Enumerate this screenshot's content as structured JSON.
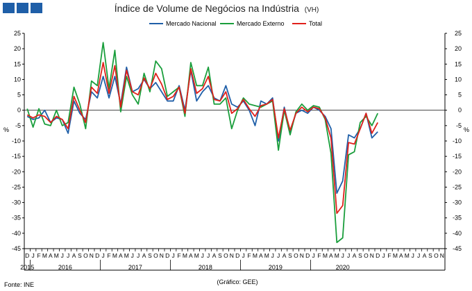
{
  "chart_data": {
    "type": "line",
    "title": "Índice de Volume de Negócios na Indústria",
    "title_suffix": "(VH)",
    "ylabel": "%",
    "ylim": [
      -45,
      25
    ],
    "yticks": [
      25,
      20,
      15,
      10,
      5,
      0,
      -5,
      -10,
      -15,
      -20,
      -25,
      -30,
      -35,
      -40,
      -45
    ],
    "grid": false,
    "legend_position": "top",
    "month_letters": [
      "D",
      "J",
      "F",
      "M",
      "A",
      "M",
      "J",
      "J",
      "A",
      "S",
      "O",
      "N",
      "D",
      "J",
      "F",
      "M",
      "A",
      "M",
      "J",
      "J",
      "A",
      "S",
      "O",
      "N",
      "D",
      "J",
      "F",
      "M",
      "A",
      "M",
      "J",
      "J",
      "A",
      "S",
      "O",
      "N",
      "D",
      "J",
      "F",
      "M",
      "A",
      "M",
      "J",
      "J",
      "A",
      "S",
      "O",
      "N",
      "D",
      "J",
      "F",
      "M",
      "A",
      "M",
      "J",
      "J",
      "A",
      "S",
      "O",
      "N",
      "D",
      "J",
      "F",
      "M",
      "A",
      "M",
      "J",
      "J",
      "A",
      "S",
      "O",
      "N"
    ],
    "years": [
      {
        "label": "2015",
        "start": 0,
        "end": 0
      },
      {
        "label": "2016",
        "start": 1,
        "end": 12
      },
      {
        "label": "2017",
        "start": 13,
        "end": 24
      },
      {
        "label": "2018",
        "start": 25,
        "end": 36
      },
      {
        "label": "2019",
        "start": 37,
        "end": 48
      },
      {
        "label": "2020",
        "start": 49,
        "end": 59
      }
    ],
    "series": [
      {
        "name": "Mercado Nacional",
        "color": "#1f5fa8",
        "values": [
          -2,
          -3,
          -2.5,
          0,
          -4,
          -2.5,
          -3,
          -7.5,
          3,
          -1,
          -3,
          6,
          4,
          11,
          4,
          11,
          2,
          14,
          6,
          7,
          10,
          7,
          9,
          6,
          3,
          3,
          8,
          0,
          13,
          3,
          6,
          8,
          4,
          3,
          8,
          2,
          1,
          3,
          0,
          -5,
          3,
          2,
          4,
          -10,
          1,
          -7,
          -1,
          0,
          -1,
          1,
          0,
          -2,
          -6,
          -27,
          -23,
          -8,
          -9,
          -6,
          -1,
          -9,
          -7
        ]
      },
      {
        "name": "Mercado Externo",
        "color": "#1a9e3c",
        "values": [
          0.5,
          -5.5,
          0.5,
          -4.5,
          -5,
          0,
          -5,
          -4,
          7.5,
          2,
          -6,
          9.5,
          8,
          22,
          7,
          19.5,
          -0.5,
          11,
          5,
          2,
          12,
          6,
          16,
          13.5,
          4.5,
          6,
          7.5,
          -2,
          15.5,
          8,
          8,
          14,
          2,
          2,
          4,
          -6,
          0,
          4,
          2,
          1.5,
          1,
          2,
          3,
          -13,
          0,
          -8,
          -0.5,
          2,
          0,
          1.5,
          1,
          -3,
          -14,
          -43,
          -41.5,
          -14.5,
          -13.5,
          -4,
          -2,
          -5,
          -1
        ]
      },
      {
        "name": "Total",
        "color": "#e0201b",
        "values": [
          -1.5,
          -2.5,
          -1.5,
          -2,
          -4,
          -2,
          -3,
          -6,
          4.5,
          0,
          -4,
          7.5,
          5.5,
          15.5,
          5.5,
          14.5,
          1,
          13,
          6,
          5,
          10.5,
          7,
          12,
          8.5,
          3.5,
          4.5,
          7.5,
          -1,
          13.5,
          5.5,
          7,
          11,
          3.5,
          3,
          6,
          -1,
          0.5,
          3.5,
          0.5,
          -2,
          1.5,
          2,
          3.5,
          -9,
          0.5,
          -6.5,
          -1,
          1,
          -0.5,
          1,
          0.5,
          -2.5,
          -9,
          -33.5,
          -31,
          -10.5,
          -11,
          -6,
          -1,
          -7.5,
          -4
        ]
      }
    ]
  },
  "footer": {
    "source": "Fonte: INE",
    "credit": "(Gráfico: GEE)"
  }
}
